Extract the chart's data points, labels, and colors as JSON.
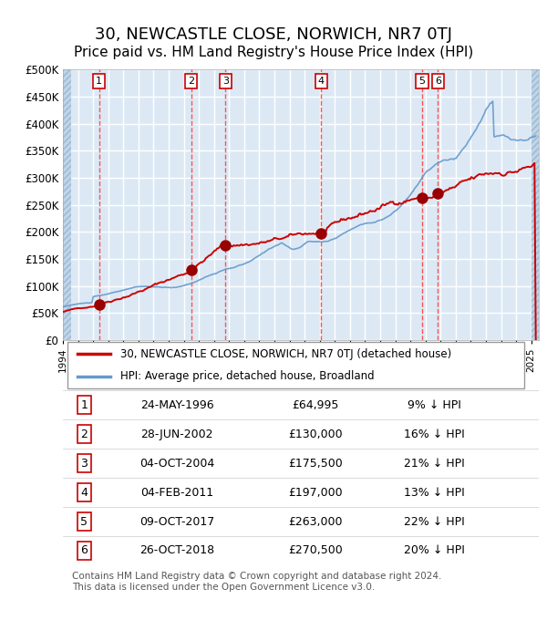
{
  "title": "30, NEWCASTLE CLOSE, NORWICH, NR7 0TJ",
  "subtitle": "Price paid vs. HM Land Registry's House Price Index (HPI)",
  "title_fontsize": 13,
  "subtitle_fontsize": 11,
  "ylabel_ticks": [
    "£0",
    "£50K",
    "£100K",
    "£150K",
    "£200K",
    "£250K",
    "£300K",
    "£350K",
    "£400K",
    "£450K",
    "£500K"
  ],
  "ytick_values": [
    0,
    50000,
    100000,
    150000,
    200000,
    250000,
    300000,
    350000,
    400000,
    450000,
    500000
  ],
  "ylim": [
    0,
    500000
  ],
  "xlim_start": 1994.0,
  "xlim_end": 2025.5,
  "background_color": "#dce9f5",
  "grid_color": "#ffffff",
  "red_line_color": "#cc0000",
  "blue_line_color": "#6699cc",
  "dashed_line_color": "#ff4444",
  "sale_marker_color": "#990000",
  "legend_label_red": "30, NEWCASTLE CLOSE, NORWICH, NR7 0TJ (detached house)",
  "legend_label_blue": "HPI: Average price, detached house, Broadland",
  "footer_text": "Contains HM Land Registry data © Crown copyright and database right 2024.\nThis data is licensed under the Open Government Licence v3.0.",
  "sales": [
    {
      "num": 1,
      "date": "24-MAY-1996",
      "year": 1996.39,
      "price": 64995,
      "hpi_pct": "9% ↓ HPI"
    },
    {
      "num": 2,
      "date": "28-JUN-2002",
      "year": 2002.49,
      "price": 130000,
      "hpi_pct": "16% ↓ HPI"
    },
    {
      "num": 3,
      "date": "04-OCT-2004",
      "year": 2004.76,
      "price": 175500,
      "hpi_pct": "21% ↓ HPI"
    },
    {
      "num": 4,
      "date": "04-FEB-2011",
      "year": 2011.09,
      "price": 197000,
      "hpi_pct": "13% ↓ HPI"
    },
    {
      "num": 5,
      "date": "09-OCT-2017",
      "year": 2017.77,
      "price": 263000,
      "hpi_pct": "22% ↓ HPI"
    },
    {
      "num": 6,
      "date": "26-OCT-2018",
      "year": 2018.82,
      "price": 270500,
      "hpi_pct": "20% ↓ HPI"
    }
  ]
}
